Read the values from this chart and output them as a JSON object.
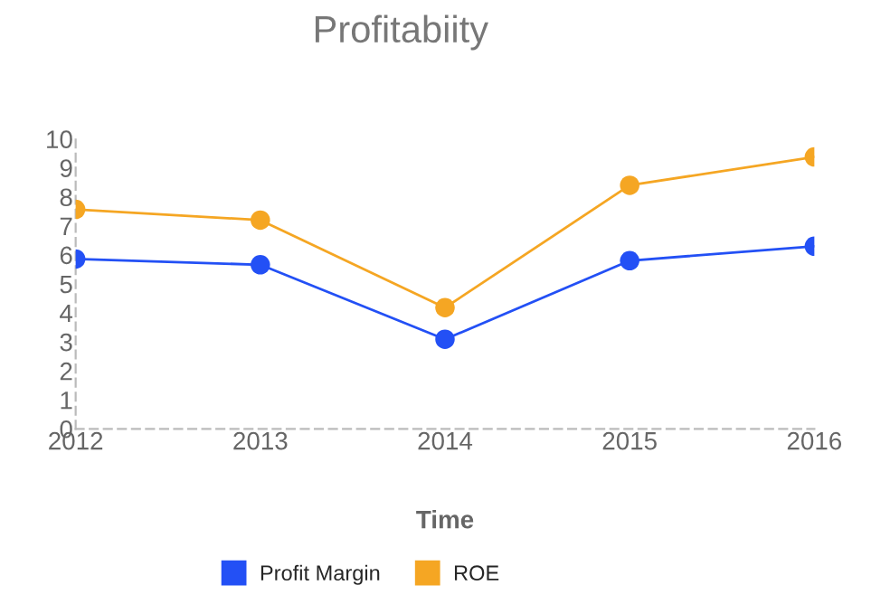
{
  "chart_data": {
    "type": "line",
    "title": "Profitabiity",
    "xlabel": "Time",
    "categories": [
      "2012",
      "2013",
      "2014",
      "2015",
      "2016"
    ],
    "series": [
      {
        "name": "Profit Margin",
        "color": "#2350f5",
        "values": [
          5.86,
          5.66,
          3.09,
          5.8,
          6.3
        ]
      },
      {
        "name": "ROE",
        "color": "#f5a623",
        "values": [
          7.57,
          7.2,
          4.18,
          8.4,
          9.38
        ]
      }
    ],
    "ylim": [
      0,
      10
    ],
    "yticks": [
      0,
      1,
      2,
      3,
      4,
      5,
      6,
      7,
      8,
      9,
      10
    ],
    "grid": false,
    "legend": "bottom",
    "marker": "circle",
    "line_style": "solid"
  }
}
